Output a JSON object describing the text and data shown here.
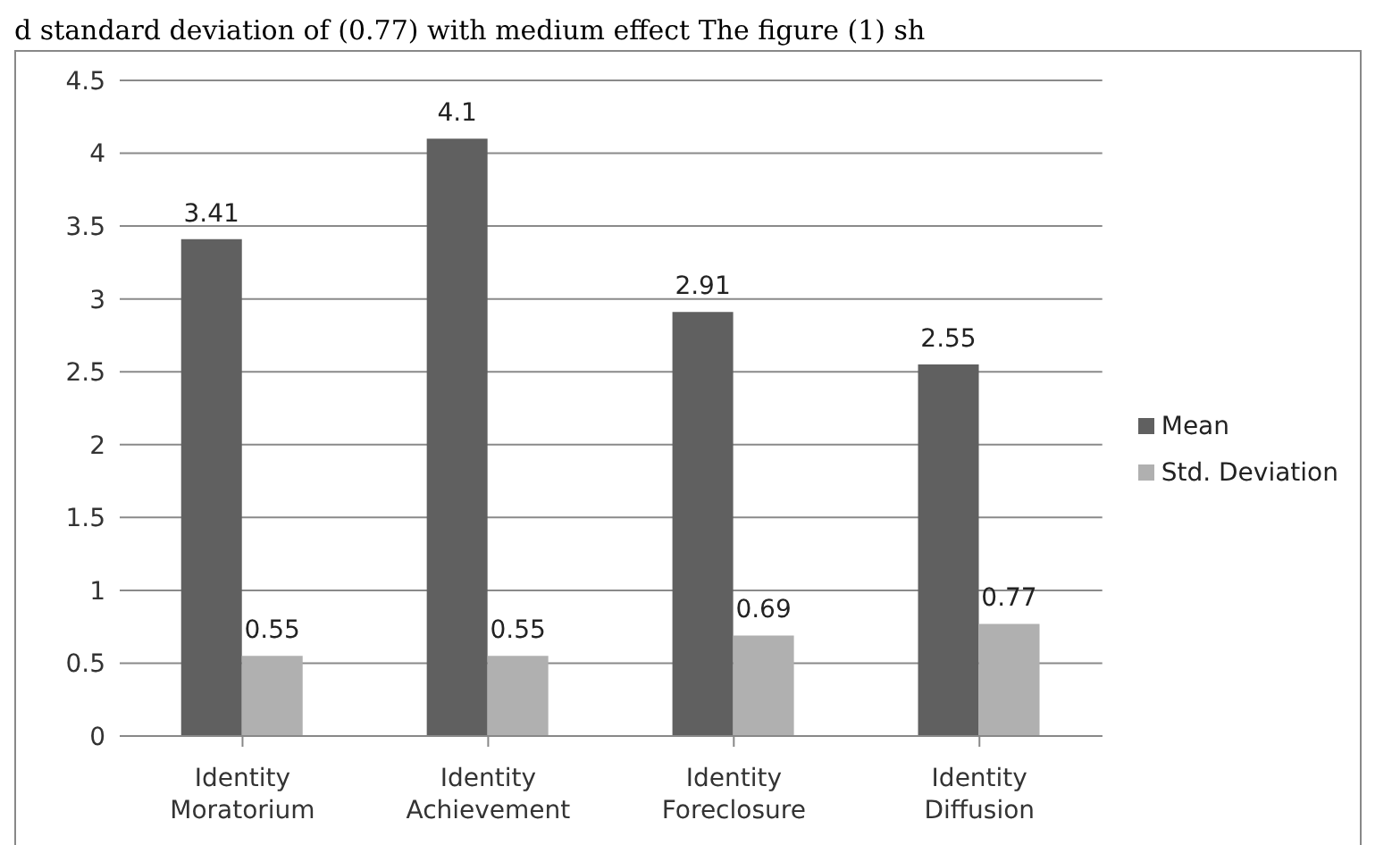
{
  "chart_data": {
    "type": "bar",
    "annotations": [
      "d standard deviation of (0.77) with medium effect The figure (1) sh"
    ],
    "categories": [
      "Identity Moratorium",
      "Identity Achievement",
      "Identity Foreclosure",
      "Identity Diffusion"
    ],
    "series": [
      {
        "name": "Mean",
        "color": "#606060",
        "values": [
          3.41,
          4.1,
          2.91,
          2.55
        ]
      },
      {
        "name": "Std. Deviation",
        "color": "#b0b0b0",
        "values": [
          0.55,
          0.55,
          0.69,
          0.77
        ]
      }
    ],
    "ylim": [
      0,
      4.5
    ],
    "yticks": [
      0,
      0.5,
      1,
      1.5,
      2,
      2.5,
      3,
      3.5,
      4,
      4.5
    ],
    "grid": "y",
    "legend": "right",
    "data_labels": true
  }
}
